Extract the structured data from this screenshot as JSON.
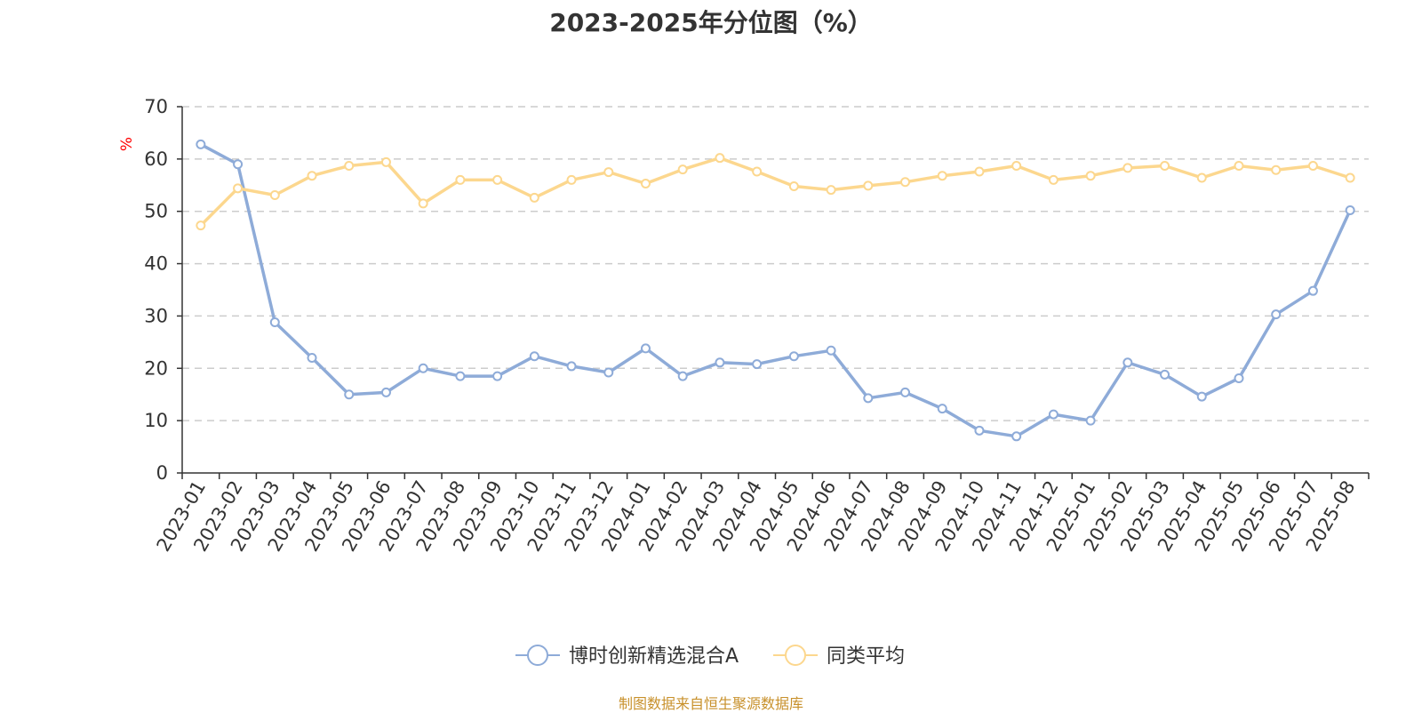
{
  "title": "2023-2025年分位图（%）",
  "source_note": "制图数据来自恒生聚源数据库",
  "colors": {
    "series_a": "#8eabd8",
    "series_b": "#fcd78e",
    "axis": "#333333",
    "grid": "#cccccc",
    "unit": "#ff0000",
    "source": "#c8912c"
  },
  "chart_data": {
    "type": "line",
    "title": "2023-2025年分位图（%）",
    "ylabel": "%",
    "xlabel": "",
    "ylim": [
      0,
      70
    ],
    "yticks": [
      0,
      10,
      20,
      30,
      40,
      50,
      60,
      70
    ],
    "grid": true,
    "legend_position": "bottom",
    "categories": [
      "2023-01",
      "2023-02",
      "2023-03",
      "2023-04",
      "2023-05",
      "2023-06",
      "2023-07",
      "2023-08",
      "2023-09",
      "2023-10",
      "2023-11",
      "2023-12",
      "2024-01",
      "2024-02",
      "2024-03",
      "2024-04",
      "2024-05",
      "2024-06",
      "2024-07",
      "2024-08",
      "2024-09",
      "2024-10",
      "2024-11",
      "2024-12",
      "2025-01",
      "2025-02",
      "2025-03",
      "2025-04",
      "2025-05",
      "2025-06",
      "2025-07",
      "2025-08"
    ],
    "series": [
      {
        "name": "博时创新精选混合A",
        "color": "#8eabd8",
        "values": [
          62.8,
          59.0,
          28.8,
          22.0,
          15.0,
          15.4,
          20.0,
          18.5,
          18.5,
          22.3,
          20.4,
          19.2,
          23.8,
          18.5,
          21.1,
          20.8,
          22.3,
          23.4,
          14.3,
          15.4,
          12.3,
          8.1,
          7.0,
          11.2,
          10.0,
          21.1,
          18.8,
          14.6,
          18.1,
          30.3,
          34.8,
          50.2
        ]
      },
      {
        "name": "同类平均",
        "color": "#fcd78e",
        "values": [
          47.3,
          54.4,
          53.1,
          56.8,
          58.7,
          59.4,
          51.5,
          56.0,
          56.0,
          52.6,
          56.0,
          57.5,
          55.3,
          58.0,
          60.2,
          57.6,
          54.8,
          54.1,
          54.9,
          55.6,
          56.8,
          57.6,
          58.7,
          56.0,
          56.8,
          58.3,
          58.7,
          56.4,
          58.7,
          57.9,
          58.7,
          56.4
        ]
      }
    ]
  }
}
